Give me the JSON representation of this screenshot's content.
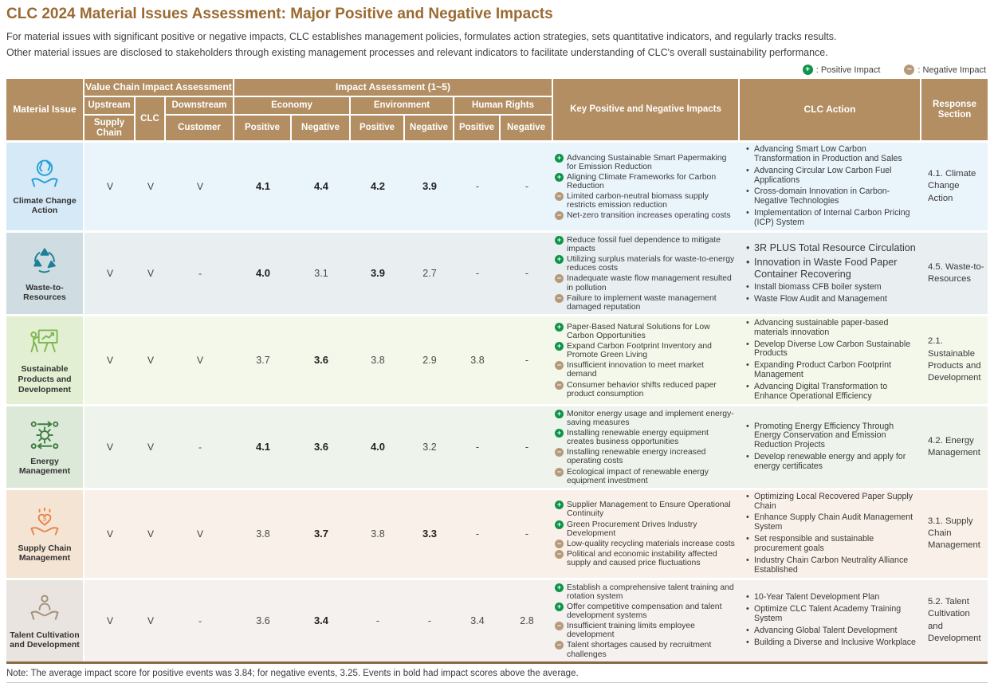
{
  "title": "CLC 2024 Material Issues Assessment: Major Positive and Negative Impacts",
  "subtitle_line1": "For material issues with significant positive or negative impacts, CLC establishes management policies, formulates action strategies, sets quantitative indicators, and regularly tracks results.",
  "subtitle_line2": "Other material issues are disclosed to stakeholders through existing management processes and relevant indicators to facilitate understanding of CLC's overall sustainability performance.",
  "legend": {
    "positive_label": ": Positive Impact",
    "negative_label": ": Negative Impact"
  },
  "colors": {
    "positive_impact": "#0e9448",
    "negative_impact": "#b5997b",
    "header_bg": "#b28e62",
    "title_text": "#9b6a31"
  },
  "table": {
    "header": {
      "material_issue": "Material Issue",
      "value_chain_group": "Value Chain Impact Assessment",
      "impact_group": "Impact Assessment (1~5)",
      "upstream": "Upstream",
      "supply_chain": "Supply Chain",
      "clc": "CLC",
      "downstream": "Downstream",
      "customer": "Customer",
      "economy": "Economy",
      "environment": "Environment",
      "human_rights": "Human Rights",
      "positive": "Positive",
      "negative": "Negative",
      "key_impacts": "Key Positive and Negative Impacts",
      "clc_action": "CLC Action",
      "response_section": "Response Section"
    }
  },
  "rows": [
    {
      "label": "Climate Change Action",
      "icon": "earth-in-hands-icon",
      "colors": {
        "tile_bg": "#d6e9f7",
        "row_bg": "#eaf4fb",
        "accent": "#29a0d8"
      },
      "value_chain": {
        "upstream": "V",
        "clc": "V",
        "downstream": "V"
      },
      "scores": [
        {
          "v": "4.1",
          "bold": true
        },
        {
          "v": "4.4",
          "bold": true
        },
        {
          "v": "4.2",
          "bold": true
        },
        {
          "v": "3.9",
          "bold": true
        },
        {
          "v": "-",
          "bold": false
        },
        {
          "v": "-",
          "bold": false
        }
      ],
      "impacts": [
        {
          "sign": "positive",
          "text": "Advancing Sustainable Smart Papermaking for Emission Reduction"
        },
        {
          "sign": "positive",
          "text": "Aligning Climate Frameworks for Carbon Reduction"
        },
        {
          "sign": "negative",
          "text": "Limited carbon-neutral biomass supply restricts emission reduction"
        },
        {
          "sign": "negative",
          "text": "Net-zero transition increases operating costs"
        }
      ],
      "actions": [
        {
          "text": "Advancing Smart Low Carbon Transformation in Production and Sales",
          "large": false
        },
        {
          "text": "Advancing Circular Low Carbon Fuel Applications",
          "large": false
        },
        {
          "text": "Cross-domain Innovation in Carbon-Negative Technologies",
          "large": false
        },
        {
          "text": "Implementation of Internal Carbon Pricing (ICP) System",
          "large": false
        }
      ],
      "response": "4.1. Climate Change Action"
    },
    {
      "label": "Waste-to-Resources",
      "icon": "recycle-arrows-icon",
      "colors": {
        "tile_bg": "#cfdde2",
        "row_bg": "#e9eff1",
        "accent": "#1f7e98"
      },
      "value_chain": {
        "upstream": "V",
        "clc": "V",
        "downstream": "-"
      },
      "scores": [
        {
          "v": "4.0",
          "bold": true
        },
        {
          "v": "3.1",
          "bold": false
        },
        {
          "v": "3.9",
          "bold": true
        },
        {
          "v": "2.7",
          "bold": false
        },
        {
          "v": "-",
          "bold": false
        },
        {
          "v": "-",
          "bold": false
        }
      ],
      "impacts": [
        {
          "sign": "positive",
          "text": "Reduce fossil fuel dependence to mitigate impacts"
        },
        {
          "sign": "positive",
          "text": "Utilizing surplus materials for waste-to-energy reduces costs"
        },
        {
          "sign": "negative",
          "text": "Inadequate waste flow management resulted in pollution"
        },
        {
          "sign": "negative",
          "text": "Failure to implement waste management damaged reputation"
        }
      ],
      "actions": [
        {
          "text": "3R PLUS Total Resource Circulation",
          "large": true
        },
        {
          "text": "Innovation in Waste Food Paper Container Recovering",
          "large": true
        },
        {
          "text": "Install biomass CFB boiler system",
          "large": false
        },
        {
          "text": "Waste Flow Audit and Management",
          "large": false
        }
      ],
      "response": "4.5. Waste-to-Resources"
    },
    {
      "label": "Sustainable Products and Development",
      "icon": "growth-presentation-icon",
      "colors": {
        "tile_bg": "#e3efd2",
        "row_bg": "#f3f8ea",
        "accent": "#7cb850"
      },
      "value_chain": {
        "upstream": "V",
        "clc": "V",
        "downstream": "V"
      },
      "scores": [
        {
          "v": "3.7",
          "bold": false
        },
        {
          "v": "3.6",
          "bold": true
        },
        {
          "v": "3.8",
          "bold": false
        },
        {
          "v": "2.9",
          "bold": false
        },
        {
          "v": "3.8",
          "bold": false
        },
        {
          "v": "-",
          "bold": false
        }
      ],
      "impacts": [
        {
          "sign": "positive",
          "text": "Paper-Based Natural Solutions for Low Carbon Opportunities"
        },
        {
          "sign": "positive",
          "text": "Expand Carbon Footprint Inventory and Promote Green Living"
        },
        {
          "sign": "negative",
          "text": "Insufficient innovation to meet market demand"
        },
        {
          "sign": "negative",
          "text": "Consumer behavior shifts reduced paper product consumption"
        }
      ],
      "actions": [
        {
          "text": "Advancing sustainable paper-based materials innovation",
          "large": false
        },
        {
          "text": "Develop Diverse Low Carbon Sustainable Products",
          "large": false
        },
        {
          "text": "Expanding Product Carbon Footprint Management",
          "large": false
        },
        {
          "text": "Advancing Digital Transformation to Enhance Operational Efficiency",
          "large": false
        }
      ],
      "response": "2.1. Sustainable Products and Development"
    },
    {
      "label": "Energy Management",
      "icon": "energy-cycle-gear-icon",
      "colors": {
        "tile_bg": "#dde9d8",
        "row_bg": "#eef3eb",
        "accent": "#3c7d3f"
      },
      "value_chain": {
        "upstream": "V",
        "clc": "V",
        "downstream": "-"
      },
      "scores": [
        {
          "v": "4.1",
          "bold": true
        },
        {
          "v": "3.6",
          "bold": true
        },
        {
          "v": "4.0",
          "bold": true
        },
        {
          "v": "3.2",
          "bold": false
        },
        {
          "v": "-",
          "bold": false
        },
        {
          "v": "-",
          "bold": false
        }
      ],
      "impacts": [
        {
          "sign": "positive",
          "text": "Monitor energy usage and implement energy-saving measures"
        },
        {
          "sign": "positive",
          "text": "Installing renewable energy equipment creates business opportunities"
        },
        {
          "sign": "negative",
          "text": "Installing renewable energy increased operating costs"
        },
        {
          "sign": "negative",
          "text": "Ecological impact of renewable energy equipment investment"
        }
      ],
      "actions": [
        {
          "text": "Promoting Energy Efficiency Through Energy Conservation and Emission Reduction Projects",
          "large": false
        },
        {
          "text": "Develop renewable energy and apply for energy certificates",
          "large": false
        }
      ],
      "response": "4.2. Energy Management"
    },
    {
      "label": "Supply Chain Management",
      "icon": "hands-heart-dollar-icon",
      "colors": {
        "tile_bg": "#f4e4d3",
        "row_bg": "#f9f1e9",
        "accent": "#e8854c"
      },
      "value_chain": {
        "upstream": "V",
        "clc": "V",
        "downstream": "V"
      },
      "scores": [
        {
          "v": "3.8",
          "bold": false
        },
        {
          "v": "3.7",
          "bold": true
        },
        {
          "v": "3.8",
          "bold": false
        },
        {
          "v": "3.3",
          "bold": true
        },
        {
          "v": "-",
          "bold": false
        },
        {
          "v": "-",
          "bold": false
        }
      ],
      "impacts": [
        {
          "sign": "positive",
          "text": "Supplier Management to Ensure Operational Continuity"
        },
        {
          "sign": "positive",
          "text": "Green Procurement Drives Industry Development"
        },
        {
          "sign": "negative",
          "text": "Low-quality recycling materials increase costs"
        },
        {
          "sign": "negative",
          "text": "Political and economic instability affected supply and caused price fluctuations"
        }
      ],
      "actions": [
        {
          "text": "Optimizing Local Recovered Paper Supply Chain",
          "large": false
        },
        {
          "text": "Enhance Supply Chain Audit Management System",
          "large": false
        },
        {
          "text": "Set responsible and sustainable procurement goals",
          "large": false
        },
        {
          "text": "Industry Chain Carbon Neutrality Alliance Established",
          "large": false
        }
      ],
      "response": "3.1. Supply Chain Management"
    },
    {
      "label": "Talent Cultivation and Development",
      "icon": "hands-person-icon",
      "colors": {
        "tile_bg": "#e9e4e0",
        "row_bg": "#f4f1ef",
        "accent": "#a5907c"
      },
      "value_chain": {
        "upstream": "V",
        "clc": "V",
        "downstream": "-"
      },
      "scores": [
        {
          "v": "3.6",
          "bold": false
        },
        {
          "v": "3.4",
          "bold": true
        },
        {
          "v": "-",
          "bold": false
        },
        {
          "v": "-",
          "bold": false
        },
        {
          "v": "3.4",
          "bold": false
        },
        {
          "v": "2.8",
          "bold": false
        }
      ],
      "impacts": [
        {
          "sign": "positive",
          "text": "Establish a comprehensive talent training and rotation system"
        },
        {
          "sign": "positive",
          "text": "Offer competitive compensation and talent development systems"
        },
        {
          "sign": "negative",
          "text": "Insufficient training limits employee development"
        },
        {
          "sign": "negative",
          "text": "Talent shortages caused by recruitment challenges"
        }
      ],
      "actions": [
        {
          "text": "10-Year Talent Development Plan",
          "large": false
        },
        {
          "text": "Optimize CLC Talent Academy Training System",
          "large": false
        },
        {
          "text": "Advancing Global Talent Development",
          "large": false
        },
        {
          "text": "Building a Diverse and Inclusive Workplace",
          "large": false
        }
      ],
      "response": "5.2. Talent Cultivation and Development"
    }
  ],
  "note": "Note: The average impact score for positive events was 3.84; for negative events, 3.25. Events in bold had impact scores above the average."
}
